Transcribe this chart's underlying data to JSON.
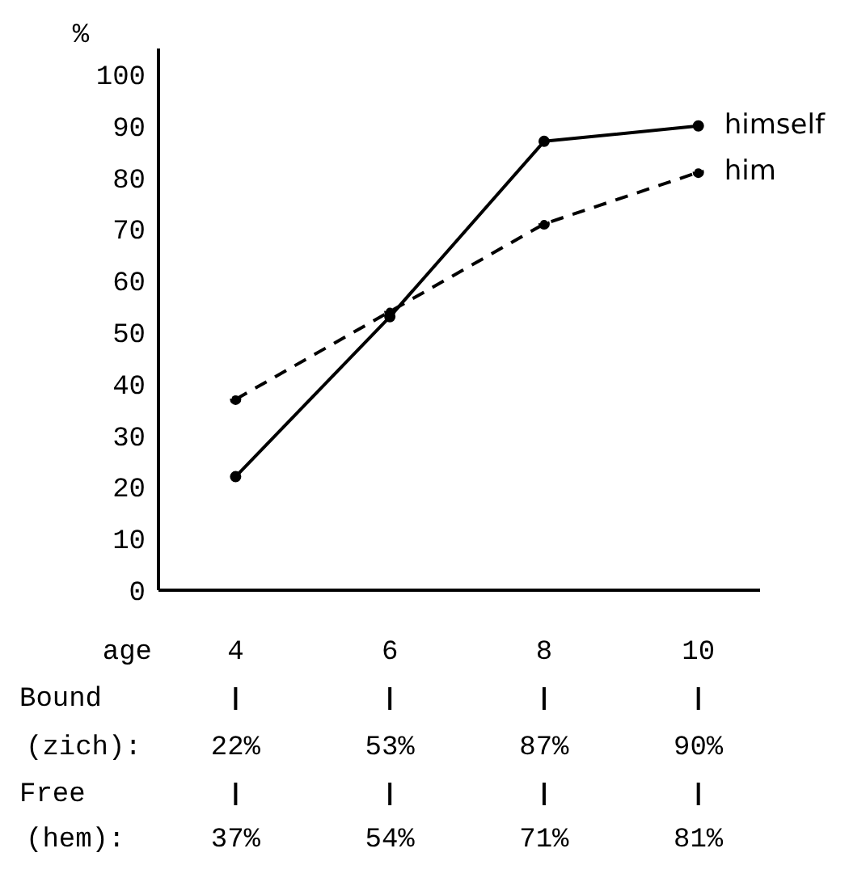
{
  "chart_data": {
    "type": "line",
    "xlabel": "age",
    "ylabel": "%",
    "categories": [
      "4",
      "6",
      "8",
      "10"
    ],
    "series": [
      {
        "name": "himself",
        "color": "#000000",
        "line_style": "solid",
        "values": [
          22,
          53,
          87,
          90
        ],
        "value_labels": [
          "22%",
          "53%",
          "87%",
          "90%"
        ]
      },
      {
        "name": "him",
        "color": "#000000",
        "line_style": "dashed",
        "values": [
          37,
          54,
          71,
          81
        ],
        "value_labels": [
          "37%",
          "54%",
          "71%",
          "81%"
        ]
      }
    ],
    "ylim": [
      0,
      105
    ],
    "yticks": [
      0,
      10,
      20,
      30,
      40,
      50,
      60,
      70,
      80,
      90,
      100
    ],
    "marker": "circle",
    "annotations": [
      "Bound",
      "(zich):",
      "Free",
      "(hem):"
    ]
  }
}
